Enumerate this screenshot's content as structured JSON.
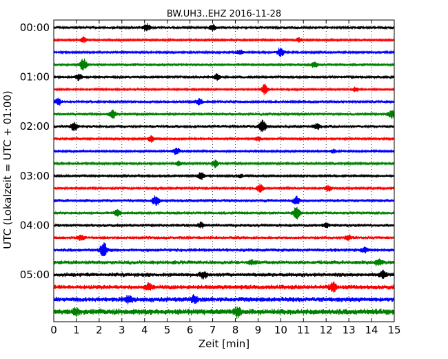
{
  "chart_data": {
    "type": "line",
    "title": "BW.UH3..EHZ 2016-11-28",
    "xlabel": "Zeit  [min]",
    "ylabel": "UTC (Lokalzeit = UTC + 01:00)",
    "xlim": [
      0,
      15
    ],
    "x_ticks": [
      "0",
      "1",
      "2",
      "3",
      "4",
      "5",
      "6",
      "7",
      "8",
      "9",
      "10",
      "11",
      "12",
      "13",
      "14",
      "15"
    ],
    "y_ticks": [
      "00:00",
      "01:00",
      "02:00",
      "03:00",
      "04:00",
      "05:00"
    ],
    "grid": "vertical-dotted",
    "trace_minutes": 15,
    "color_cycle": [
      "#000000",
      "#ff0000",
      "#0000ff",
      "#008000"
    ],
    "traces": [
      {
        "start": "00:00",
        "amplitude": 0.35,
        "events": [
          [
            4.1,
            1.4
          ],
          [
            7.0,
            1.0
          ]
        ]
      },
      {
        "start": "00:15",
        "amplitude": 0.3,
        "events": [
          [
            1.3,
            0.9
          ],
          [
            10.8,
            0.7
          ]
        ]
      },
      {
        "start": "00:30",
        "amplitude": 0.3,
        "events": [
          [
            10.0,
            1.8
          ],
          [
            8.2,
            0.8
          ]
        ]
      },
      {
        "start": "00:45",
        "amplitude": 0.4,
        "events": [
          [
            1.3,
            2.2
          ],
          [
            11.5,
            1.0
          ]
        ]
      },
      {
        "start": "01:00",
        "amplitude": 0.35,
        "events": [
          [
            1.1,
            1.0
          ],
          [
            7.2,
            1.0
          ]
        ]
      },
      {
        "start": "01:15",
        "amplitude": 0.25,
        "events": [
          [
            9.3,
            1.8
          ],
          [
            13.3,
            0.8
          ]
        ]
      },
      {
        "start": "01:30",
        "amplitude": 0.35,
        "events": [
          [
            0.2,
            1.1
          ],
          [
            6.4,
            1.0
          ]
        ]
      },
      {
        "start": "01:45",
        "amplitude": 0.4,
        "events": [
          [
            2.6,
            1.4
          ],
          [
            14.9,
            1.3
          ]
        ]
      },
      {
        "start": "02:00",
        "amplitude": 0.4,
        "events": [
          [
            0.9,
            1.5
          ],
          [
            9.2,
            2.2
          ],
          [
            11.6,
            1.0
          ]
        ]
      },
      {
        "start": "02:15",
        "amplitude": 0.3,
        "events": [
          [
            4.3,
            1.2
          ],
          [
            9.0,
            0.8
          ]
        ]
      },
      {
        "start": "02:30",
        "amplitude": 0.3,
        "events": [
          [
            5.4,
            1.2
          ],
          [
            12.3,
            0.6
          ]
        ]
      },
      {
        "start": "02:45",
        "amplitude": 0.3,
        "events": [
          [
            7.1,
            1.3
          ],
          [
            5.5,
            0.8
          ]
        ]
      },
      {
        "start": "03:00",
        "amplitude": 0.35,
        "events": [
          [
            6.5,
            1.3
          ],
          [
            8.2,
            0.6
          ]
        ]
      },
      {
        "start": "03:15",
        "amplitude": 0.3,
        "events": [
          [
            9.1,
            1.5
          ],
          [
            12.1,
            1.0
          ]
        ]
      },
      {
        "start": "03:30",
        "amplitude": 0.45,
        "events": [
          [
            4.5,
            1.5
          ],
          [
            10.7,
            1.3
          ]
        ]
      },
      {
        "start": "03:45",
        "amplitude": 0.4,
        "events": [
          [
            10.7,
            2.2
          ],
          [
            2.8,
            1.0
          ]
        ]
      },
      {
        "start": "04:00",
        "amplitude": 0.45,
        "events": [
          [
            6.5,
            0.8
          ],
          [
            12.0,
            0.6
          ]
        ]
      },
      {
        "start": "04:15",
        "amplitude": 0.45,
        "events": [
          [
            1.2,
            0.8
          ],
          [
            13.0,
            0.7
          ]
        ]
      },
      {
        "start": "04:30",
        "amplitude": 0.5,
        "events": [
          [
            2.2,
            2.3
          ],
          [
            13.7,
            0.8
          ]
        ]
      },
      {
        "start": "04:45",
        "amplitude": 0.55,
        "events": [
          [
            14.3,
            1.0
          ],
          [
            8.7,
            0.7
          ]
        ]
      },
      {
        "start": "05:00",
        "amplitude": 0.6,
        "events": [
          [
            6.6,
            1.0
          ],
          [
            14.5,
            1.0
          ]
        ]
      },
      {
        "start": "05:15",
        "amplitude": 0.65,
        "events": [
          [
            12.3,
            1.5
          ],
          [
            4.2,
            1.0
          ]
        ]
      },
      {
        "start": "05:30",
        "amplitude": 0.7,
        "events": [
          [
            3.3,
            1.1
          ],
          [
            6.2,
            1.1
          ]
        ]
      },
      {
        "start": "05:45",
        "amplitude": 0.85,
        "events": [
          [
            8.1,
            1.4
          ],
          [
            1.0,
            1.0
          ]
        ]
      }
    ]
  }
}
